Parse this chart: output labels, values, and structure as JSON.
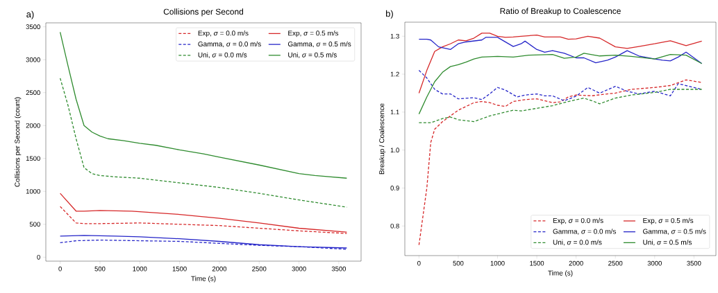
{
  "chart_data": [
    {
      "type": "line",
      "title": "Collisions per Second",
      "xlabel": "Time (s)",
      "ylabel": "Collisions per Second (count)",
      "annotations": [
        "a)"
      ],
      "xlim": [
        -180,
        3780
      ],
      "ylim": [
        -60,
        3560
      ],
      "xticks": [
        0,
        500,
        1000,
        1500,
        2000,
        2500,
        3000,
        3500
      ],
      "yticks": [
        0,
        500,
        1000,
        1500,
        2000,
        2500,
        3000,
        3500
      ],
      "grid": false,
      "legend": "top right",
      "series": [
        {
          "name": "Exp, *σ* = 0.0 m/s",
          "color": "#d62728",
          "line_style": "dashed",
          "x": [
            0,
            200,
            300,
            500,
            1000,
            1500,
            2000,
            2500,
            3000,
            3600
          ],
          "values": [
            770,
            520,
            510,
            510,
            520,
            500,
            480,
            440,
            400,
            360
          ]
        },
        {
          "name": "Exp, *σ* = 0.5 m/s",
          "color": "#d62728",
          "line_style": "solid",
          "x": [
            0,
            200,
            300,
            500,
            900,
            1500,
            2000,
            2500,
            3000,
            3600
          ],
          "values": [
            970,
            700,
            700,
            710,
            700,
            650,
            590,
            520,
            440,
            380
          ]
        },
        {
          "name": "Gamma, *σ* = 0.0 m/s",
          "color": "#2424c8",
          "line_style": "dashed",
          "x": [
            0,
            200,
            500,
            1000,
            1500,
            2000,
            2500,
            3000,
            3600
          ],
          "values": [
            220,
            250,
            260,
            250,
            240,
            210,
            180,
            160,
            120
          ]
        },
        {
          "name": "Gamma, *σ* = 0.5 m/s",
          "color": "#2424c8",
          "line_style": "solid",
          "x": [
            0,
            300,
            700,
            1000,
            1500,
            2000,
            2500,
            3000,
            3600
          ],
          "values": [
            320,
            330,
            320,
            310,
            280,
            240,
            190,
            160,
            140
          ]
        },
        {
          "name": "Uni, *σ* = 0.0 m/s",
          "color": "#2e8b2e",
          "line_style": "dashed",
          "x": [
            0,
            100,
            200,
            300,
            400,
            500,
            700,
            1000,
            1500,
            2000,
            2500,
            3000,
            3600
          ],
          "values": [
            2720,
            2300,
            1800,
            1360,
            1270,
            1240,
            1220,
            1200,
            1130,
            1060,
            970,
            870,
            760
          ]
        },
        {
          "name": "Uni, *σ* = 0.5 m/s",
          "color": "#2e8b2e",
          "line_style": "solid",
          "x": [
            0,
            100,
            200,
            300,
            400,
            500,
            600,
            800,
            1000,
            1200,
            1500,
            1800,
            2000,
            2500,
            3000,
            3200,
            3600
          ],
          "values": [
            3420,
            2900,
            2400,
            2000,
            1900,
            1840,
            1800,
            1770,
            1730,
            1700,
            1630,
            1570,
            1520,
            1400,
            1270,
            1240,
            1200
          ]
        }
      ]
    },
    {
      "type": "line",
      "title": "Ratio of Breakup to Coalescence",
      "xlabel": "Time (s)",
      "ylabel": "Breakup / Coalescence",
      "annotations": [
        "b)"
      ],
      "xlim": [
        -180,
        3780
      ],
      "ylim": [
        0.722,
        1.337
      ],
      "xticks": [
        0,
        500,
        1000,
        1500,
        2000,
        2500,
        3000,
        3500
      ],
      "yticks": [
        0.8,
        0.9,
        {
          "value": 1.0,
          "label": "1.0"
        },
        1.1,
        1.2,
        1.3
      ],
      "grid": false,
      "legend": "bottom right",
      "series": [
        {
          "name": "Exp, *σ* = 0.0 m/s",
          "color": "#d62728",
          "line_style": "dashed",
          "x": [
            0,
            100,
            150,
            200,
            300,
            400,
            500,
            600,
            700,
            800,
            900,
            1000,
            1100,
            1200,
            1350,
            1500,
            1600,
            1700,
            1800,
            1900,
            2000,
            2200,
            2400,
            2500,
            2700,
            3000,
            3200,
            3400,
            3600
          ],
          "values": [
            0.75,
            0.9,
            1.02,
            1.055,
            1.075,
            1.09,
            1.105,
            1.115,
            1.125,
            1.128,
            1.125,
            1.118,
            1.115,
            1.128,
            1.133,
            1.135,
            1.13,
            1.125,
            1.127,
            1.14,
            1.145,
            1.143,
            1.148,
            1.15,
            1.16,
            1.165,
            1.17,
            1.185,
            1.178
          ]
        },
        {
          "name": "Exp, *σ* = 0.5 m/s",
          "color": "#d62728",
          "line_style": "solid",
          "x": [
            0,
            100,
            200,
            300,
            400,
            500,
            600,
            700,
            800,
            900,
            1000,
            1100,
            1200,
            1300,
            1500,
            1600,
            1800,
            1900,
            2000,
            2150,
            2300,
            2500,
            2650,
            2800,
            3000,
            3200,
            3400,
            3600
          ],
          "values": [
            1.15,
            1.21,
            1.26,
            1.272,
            1.28,
            1.29,
            1.288,
            1.295,
            1.308,
            1.308,
            1.3,
            1.297,
            1.298,
            1.3,
            1.303,
            1.298,
            1.298,
            1.292,
            1.293,
            1.3,
            1.295,
            1.272,
            1.268,
            1.273,
            1.28,
            1.288,
            1.275,
            1.287
          ]
        },
        {
          "name": "Gamma, *σ* = 0.0 m/s",
          "color": "#2424c8",
          "line_style": "dashed",
          "x": [
            0,
            100,
            200,
            300,
            400,
            500,
            700,
            800,
            900,
            1000,
            1100,
            1250,
            1350,
            1500,
            1600,
            1700,
            1850,
            2000,
            2150,
            2300,
            2500,
            2650,
            2800,
            3000,
            3200,
            3300,
            3400,
            3600
          ],
          "values": [
            1.21,
            1.19,
            1.16,
            1.148,
            1.148,
            1.135,
            1.138,
            1.133,
            1.148,
            1.165,
            1.158,
            1.14,
            1.145,
            1.148,
            1.143,
            1.143,
            1.13,
            1.142,
            1.165,
            1.15,
            1.168,
            1.155,
            1.148,
            1.155,
            1.143,
            1.175,
            1.17,
            1.16
          ]
        },
        {
          "name": "Gamma, *σ* = 0.5 m/s",
          "color": "#2424c8",
          "line_style": "solid",
          "x": [
            0,
            100,
            150,
            250,
            400,
            500,
            600,
            800,
            850,
            1000,
            1100,
            1200,
            1300,
            1350,
            1500,
            1600,
            1700,
            1850,
            2000,
            2100,
            2250,
            2400,
            2500,
            2650,
            2800,
            3000,
            3100,
            3200,
            3300,
            3400,
            3600
          ],
          "values": [
            1.292,
            1.292,
            1.29,
            1.272,
            1.265,
            1.28,
            1.285,
            1.29,
            1.297,
            1.297,
            1.285,
            1.273,
            1.28,
            1.287,
            1.265,
            1.258,
            1.262,
            1.255,
            1.243,
            1.243,
            1.23,
            1.237,
            1.245,
            1.262,
            1.248,
            1.24,
            1.237,
            1.235,
            1.245,
            1.258,
            1.228
          ]
        },
        {
          "name": "Uni, *σ* = 0.0 m/s",
          "color": "#2e8b2e",
          "line_style": "dashed",
          "x": [
            0,
            150,
            300,
            400,
            500,
            700,
            900,
            1100,
            1200,
            1300,
            1500,
            1700,
            1900,
            2100,
            2200,
            2300,
            2500,
            2700,
            3000,
            3200,
            3600
          ],
          "values": [
            1.072,
            1.072,
            1.083,
            1.087,
            1.08,
            1.075,
            1.09,
            1.1,
            1.105,
            1.103,
            1.11,
            1.117,
            1.128,
            1.137,
            1.13,
            1.122,
            1.137,
            1.145,
            1.152,
            1.16,
            1.16
          ]
        },
        {
          "name": "Uni, *σ* = 0.5 m/s",
          "color": "#2e8b2e",
          "line_style": "solid",
          "x": [
            0,
            100,
            200,
            300,
            400,
            500,
            600,
            700,
            800,
            1000,
            1200,
            1400,
            1700,
            1850,
            2000,
            2100,
            2300,
            2500,
            2700,
            3000,
            3200,
            3400,
            3600
          ],
          "values": [
            1.095,
            1.14,
            1.18,
            1.205,
            1.22,
            1.225,
            1.232,
            1.24,
            1.245,
            1.247,
            1.245,
            1.25,
            1.252,
            1.242,
            1.245,
            1.255,
            1.248,
            1.25,
            1.247,
            1.24,
            1.252,
            1.25,
            1.228
          ]
        }
      ]
    }
  ]
}
